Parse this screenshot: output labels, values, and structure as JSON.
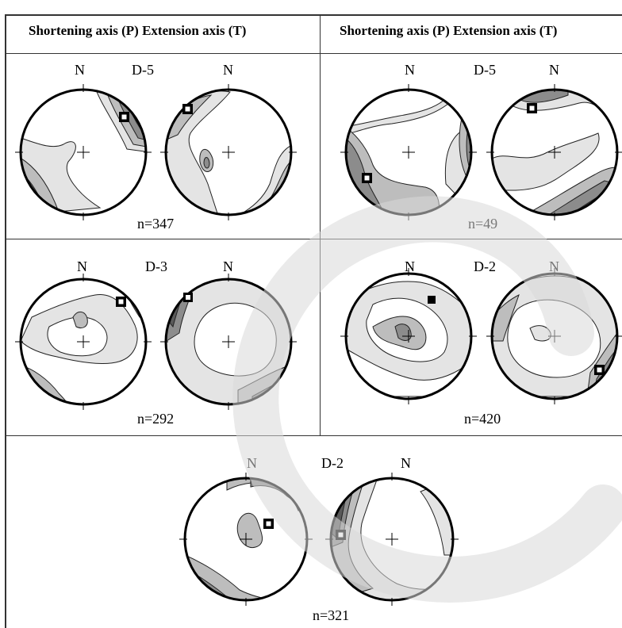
{
  "table": {
    "headers": [
      "Shortening axis (P) Extension axis (T)",
      "Shortening axis (P) Extension axis (T)"
    ],
    "cells": [
      {
        "north_p": "N",
        "site": "D-5",
        "north_t": "N",
        "n": "n=347"
      },
      {
        "north_p": "N",
        "site": "D-5",
        "north_t": "N",
        "n": "n=49"
      },
      {
        "north_p": "N",
        "site": "D-3",
        "north_t": "N",
        "n": "n=292"
      },
      {
        "north_p": "N",
        "site": "D-2",
        "north_t": "N",
        "n": "n=420"
      },
      {
        "north_p": "N",
        "site": "D-2",
        "north_t": "N",
        "n": "n=321"
      }
    ]
  },
  "colors": {
    "shade_light": "#e4e4e4",
    "shade_mid": "#bdbdbd",
    "shade_dark": "#8c8c8c",
    "shade_darker": "#5a5a5a",
    "shade_darkest": "#222222",
    "watermark": "#d9d9d9"
  }
}
